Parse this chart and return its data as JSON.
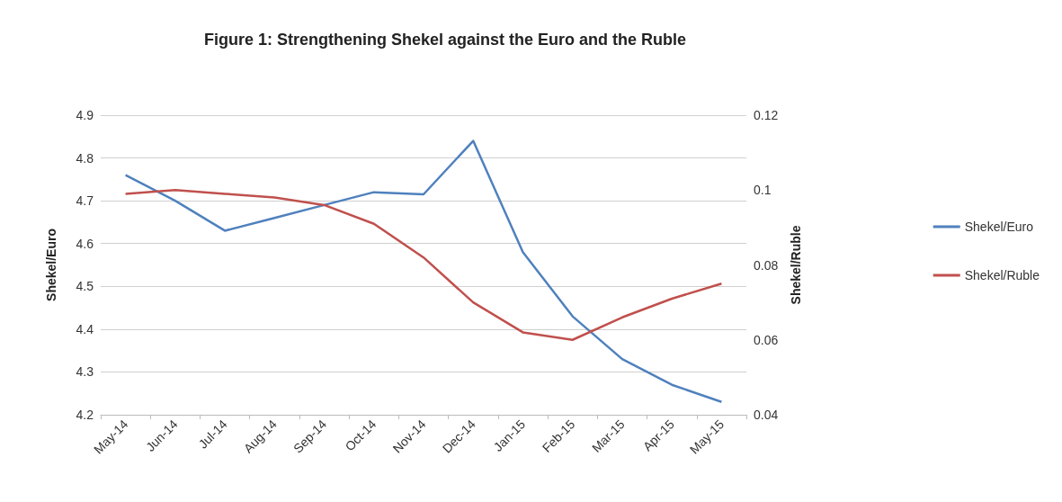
{
  "chart_data": {
    "type": "line",
    "title": "Figure 1: Strengthening Shekel against the Euro and the Ruble",
    "ylabel": "Shekel/Euro",
    "y2label": "Shekel/Ruble",
    "categories": [
      "May-14",
      "Jun-14",
      "Jul-14",
      "Aug-14",
      "Sep-14",
      "Oct-14",
      "Nov-14",
      "Dec-14",
      "Jan-15",
      "Feb-15",
      "Mar-15",
      "Apr-15",
      "May-15"
    ],
    "series": [
      {
        "name": "Shekel/Euro",
        "color": "#4f81bd",
        "values": [
          4.76,
          4.7,
          4.63,
          4.66,
          4.69,
          4.72,
          4.715,
          4.84,
          4.58,
          4.43,
          4.33,
          4.27,
          4.23
        ]
      },
      {
        "name": "Shekel/Ruble",
        "color": "#c0504d",
        "axis": "y2",
        "values": [
          0.099,
          0.1,
          0.099,
          0.098,
          0.096,
          0.091,
          0.082,
          0.07,
          0.062,
          0.06,
          0.066,
          0.071,
          0.075
        ]
      }
    ],
    "ylim": [
      4.2,
      4.9
    ],
    "yticks": [
      4.2,
      4.3,
      4.4,
      4.5,
      4.6,
      4.7,
      4.8,
      4.9
    ],
    "y2lim": [
      0.04,
      0.12
    ],
    "y2ticks": [
      0.04,
      0.06,
      0.08,
      0.1,
      0.12
    ],
    "grid": "y",
    "legend": "right",
    "marker": "none",
    "line_style": "solid"
  }
}
